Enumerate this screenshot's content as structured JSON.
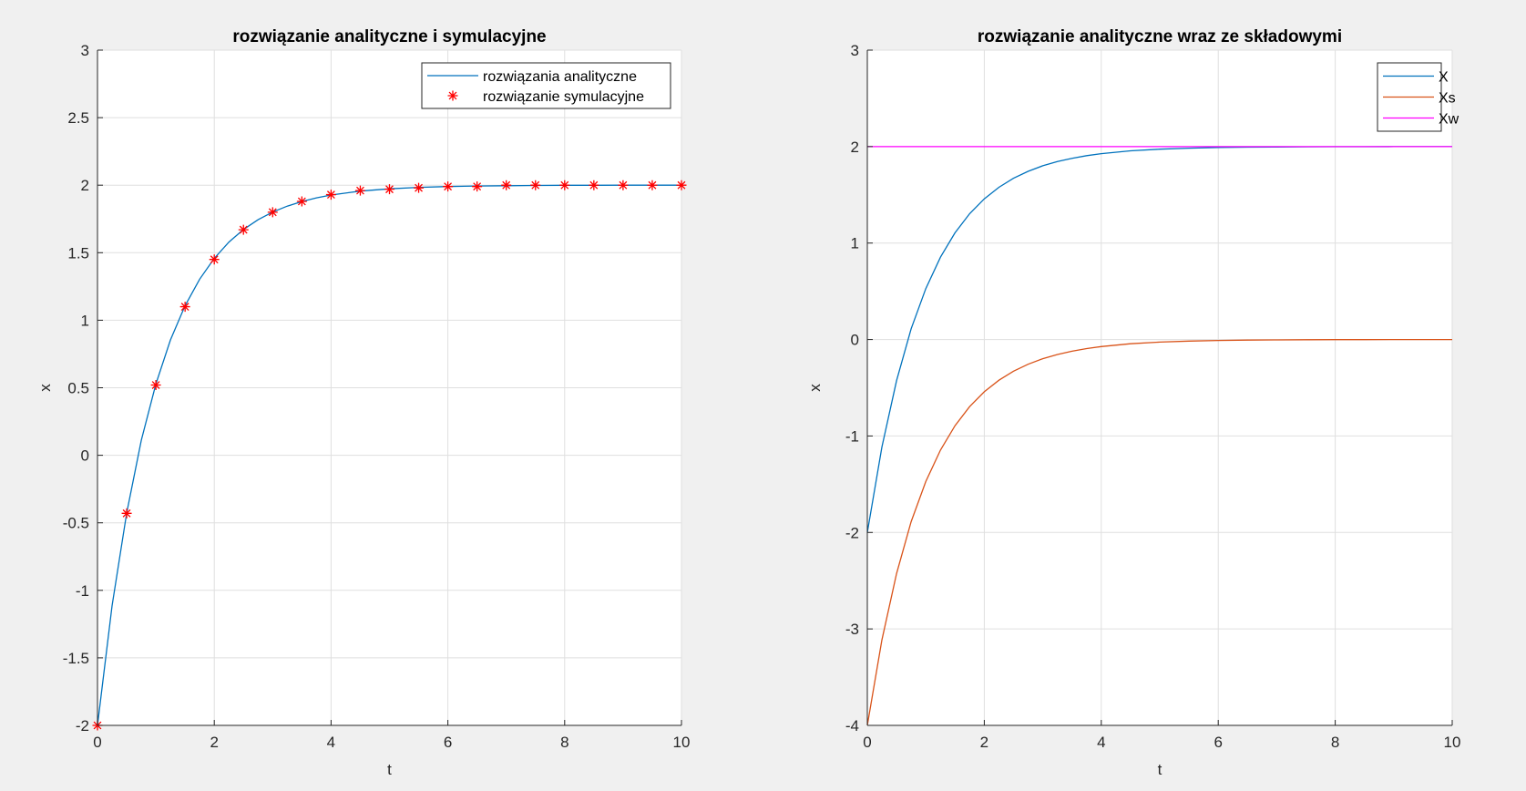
{
  "chart_data": [
    {
      "type": "line",
      "title": "rozwiązanie analityczne i symulacyjne",
      "xlabel": "t",
      "ylabel": "x",
      "xlim": [
        0,
        10
      ],
      "ylim": [
        -2,
        3
      ],
      "xticks": [
        0,
        2,
        4,
        6,
        8,
        10
      ],
      "xtick_labels": [
        "0",
        "2",
        "4",
        "6",
        "8",
        "10"
      ],
      "yticks": [
        -2,
        -1.5,
        -1,
        -0.5,
        0,
        0.5,
        1,
        1.5,
        2,
        2.5,
        3
      ],
      "ytick_labels": [
        "-2",
        "-1.5",
        "-1",
        "-0.5",
        "0",
        "0.5",
        "1",
        "1.5",
        "2",
        "2.5",
        "3"
      ],
      "grid": true,
      "legend_position": "top-right",
      "series": [
        {
          "name": "rozwiązania analityczne",
          "kind": "line",
          "color": "#0072bd",
          "x": [
            0,
            0.25,
            0.5,
            0.75,
            1,
            1.25,
            1.5,
            1.75,
            2,
            2.25,
            2.5,
            2.75,
            3,
            3.25,
            3.5,
            3.75,
            4,
            4.5,
            5,
            5.5,
            6,
            6.5,
            7,
            7.5,
            8,
            8.5,
            9,
            9.5,
            10
          ],
          "y": [
            -2,
            -1.115,
            -0.426,
            0.111,
            0.528,
            0.854,
            1.107,
            1.304,
            1.458,
            1.578,
            1.672,
            1.744,
            1.801,
            1.845,
            1.879,
            1.906,
            1.927,
            1.956,
            1.973,
            1.984,
            1.99,
            1.994,
            1.996,
            1.998,
            1.999,
            1.999,
            2.0,
            2.0,
            2.0
          ]
        },
        {
          "name": "rozwiązanie symulacyjne",
          "kind": "scatter",
          "marker": "asterisk",
          "color": "#ff0000",
          "x": [
            0,
            0.5,
            1,
            1.5,
            2,
            2.5,
            3,
            3.5,
            4,
            4.5,
            5,
            5.5,
            6,
            6.5,
            7,
            7.5,
            8,
            8.5,
            9,
            9.5,
            10
          ],
          "y": [
            -2,
            -0.43,
            0.52,
            1.1,
            1.45,
            1.67,
            1.8,
            1.88,
            1.93,
            1.96,
            1.97,
            1.98,
            1.99,
            1.99,
            2.0,
            2.0,
            2.0,
            2.0,
            2.0,
            2.0,
            2.0
          ]
        }
      ]
    },
    {
      "type": "line",
      "title": "rozwiązanie analityczne wraz ze składowymi",
      "xlabel": "t",
      "ylabel": "x",
      "xlim": [
        0,
        10
      ],
      "ylim": [
        -4,
        3
      ],
      "xticks": [
        0,
        2,
        4,
        6,
        8,
        10
      ],
      "xtick_labels": [
        "0",
        "2",
        "4",
        "6",
        "8",
        "10"
      ],
      "yticks": [
        -4,
        -3,
        -2,
        -1,
        0,
        1,
        2,
        3
      ],
      "ytick_labels": [
        "-4",
        "-3",
        "-2",
        "-1",
        "0",
        "1",
        "2",
        "3"
      ],
      "grid": true,
      "legend_position": "top-right",
      "series": [
        {
          "name": "X",
          "kind": "line",
          "color": "#0072bd",
          "x": [
            0,
            0.25,
            0.5,
            0.75,
            1,
            1.25,
            1.5,
            1.75,
            2,
            2.25,
            2.5,
            2.75,
            3,
            3.25,
            3.5,
            3.75,
            4,
            4.5,
            5,
            5.5,
            6,
            6.5,
            7,
            7.5,
            8,
            8.5,
            9,
            9.5,
            10
          ],
          "y": [
            -2,
            -1.115,
            -0.426,
            0.111,
            0.528,
            0.854,
            1.107,
            1.304,
            1.458,
            1.578,
            1.672,
            1.744,
            1.801,
            1.845,
            1.879,
            1.906,
            1.927,
            1.956,
            1.973,
            1.984,
            1.99,
            1.994,
            1.996,
            1.998,
            1.999,
            1.999,
            2.0,
            2.0,
            2.0
          ]
        },
        {
          "name": "Xs",
          "kind": "line",
          "color": "#d95319",
          "x": [
            0,
            0.25,
            0.5,
            0.75,
            1,
            1.25,
            1.5,
            1.75,
            2,
            2.25,
            2.5,
            2.75,
            3,
            3.25,
            3.5,
            3.75,
            4,
            4.5,
            5,
            5.5,
            6,
            6.5,
            7,
            7.5,
            8,
            8.5,
            9,
            9.5,
            10
          ],
          "y": [
            -4,
            -3.115,
            -2.426,
            -1.889,
            -1.472,
            -1.146,
            -0.893,
            -0.696,
            -0.542,
            -0.422,
            -0.328,
            -0.256,
            -0.199,
            -0.155,
            -0.121,
            -0.094,
            -0.073,
            -0.044,
            -0.027,
            -0.016,
            -0.01,
            -0.006,
            -0.004,
            -0.002,
            -0.001,
            -0.001,
            0.0,
            0.0,
            0.0
          ]
        },
        {
          "name": "Xw",
          "kind": "line",
          "color": "#ff00ff",
          "x": [
            0,
            10
          ],
          "y": [
            2,
            2
          ]
        }
      ]
    }
  ]
}
